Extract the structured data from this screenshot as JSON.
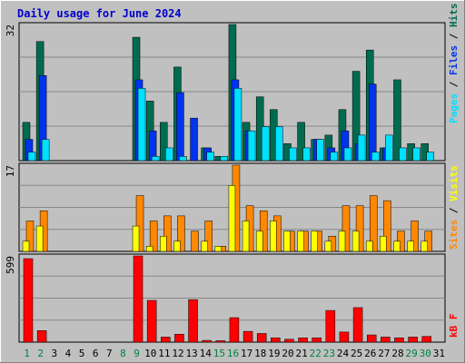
{
  "title": "Daily usage for June 2024",
  "colors": {
    "hits": "#006b4f",
    "files": "#0033ee",
    "pages": "#00e0ff",
    "visits": "#ffff00",
    "sites": "#ff8800",
    "kbf": "#ff0000",
    "grid": "#888888",
    "weekend_label": "#008040"
  },
  "chart_data": [
    {
      "type": "bar",
      "axis_max_label": "32",
      "ylim": [
        0,
        32
      ],
      "legend": [
        "Pages",
        "Files",
        "Hits"
      ],
      "categories": [
        "1",
        "2",
        "3",
        "4",
        "5",
        "6",
        "7",
        "8",
        "9",
        "10",
        "11",
        "12",
        "13",
        "14",
        "15",
        "16",
        "17",
        "18",
        "19",
        "20",
        "21",
        "22",
        "23",
        "24",
        "25",
        "26",
        "27",
        "28",
        "29",
        "30",
        "31"
      ],
      "series": [
        {
          "name": "Hits",
          "values": [
            9,
            28,
            0,
            0,
            0,
            0,
            0,
            0,
            29,
            14,
            9,
            22,
            0,
            3,
            1,
            32,
            9,
            15,
            12,
            4,
            9,
            5,
            6,
            12,
            21,
            26,
            3,
            19,
            4,
            4,
            0
          ]
        },
        {
          "name": "Files",
          "values": [
            5,
            20,
            0,
            0,
            0,
            0,
            0,
            0,
            19,
            7,
            0,
            16,
            10,
            3,
            0,
            19,
            7,
            0,
            0,
            0,
            0,
            5,
            3,
            7,
            4,
            18,
            3,
            0,
            0,
            0,
            0
          ]
        },
        {
          "name": "Pages",
          "values": [
            2,
            5,
            0,
            0,
            0,
            0,
            0,
            0,
            17,
            1,
            3,
            1,
            0,
            2,
            1,
            17,
            7,
            8,
            8,
            3,
            3,
            5,
            2,
            3,
            6,
            2,
            6,
            3,
            3,
            2,
            0
          ]
        }
      ]
    },
    {
      "type": "bar",
      "axis_max_label": "17",
      "ylim": [
        0,
        17
      ],
      "legend": [
        "Sites",
        "Visits"
      ],
      "categories": [
        "1",
        "2",
        "3",
        "4",
        "5",
        "6",
        "7",
        "8",
        "9",
        "10",
        "11",
        "12",
        "13",
        "14",
        "15",
        "16",
        "17",
        "18",
        "19",
        "20",
        "21",
        "22",
        "23",
        "24",
        "25",
        "26",
        "27",
        "28",
        "29",
        "30",
        "31"
      ],
      "series": [
        {
          "name": "Visits",
          "values": [
            2,
            5,
            0,
            0,
            0,
            0,
            0,
            0,
            5,
            1,
            3,
            2,
            0,
            2,
            1,
            13,
            6,
            4,
            6,
            4,
            4,
            4,
            2,
            4,
            4,
            2,
            3,
            2,
            2,
            2,
            0
          ]
        },
        {
          "name": "Sites",
          "values": [
            6,
            8,
            0,
            0,
            0,
            0,
            0,
            0,
            11,
            6,
            7,
            7,
            4,
            6,
            1,
            17,
            9,
            8,
            7,
            4,
            4,
            4,
            3,
            9,
            9,
            11,
            10,
            4,
            6,
            4,
            0
          ]
        }
      ]
    },
    {
      "type": "bar",
      "axis_max_label": "599",
      "ylim": [
        0,
        599
      ],
      "legend": [
        "kB F"
      ],
      "categories": [
        "1",
        "2",
        "3",
        "4",
        "5",
        "6",
        "7",
        "8",
        "9",
        "10",
        "11",
        "12",
        "13",
        "14",
        "15",
        "16",
        "17",
        "18",
        "19",
        "20",
        "21",
        "22",
        "23",
        "24",
        "25",
        "26",
        "27",
        "28",
        "29",
        "30",
        "31"
      ],
      "series": [
        {
          "name": "kB F",
          "values": [
            580,
            80,
            0,
            0,
            0,
            0,
            0,
            0,
            599,
            290,
            35,
            55,
            295,
            12,
            10,
            170,
            75,
            60,
            30,
            20,
            30,
            30,
            220,
            70,
            240,
            50,
            35,
            30,
            35,
            40,
            0
          ]
        }
      ]
    }
  ],
  "weekend_days": [
    "1",
    "2",
    "8",
    "9",
    "15",
    "16",
    "22",
    "23",
    "29",
    "30"
  ]
}
